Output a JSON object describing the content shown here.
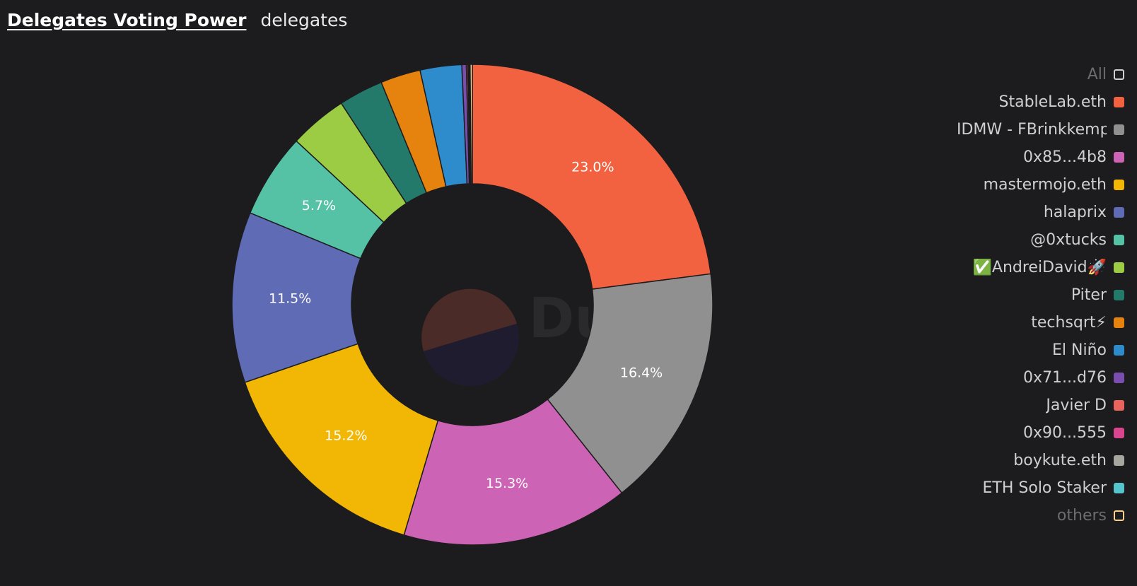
{
  "header": {
    "title": "Delegates Voting Power",
    "subtitle": "delegates"
  },
  "watermark": "Dune",
  "chart_data": {
    "type": "pie",
    "donut": true,
    "title": "Delegates Voting Power",
    "legend_position": "right",
    "legend_all_label": "All",
    "slices": [
      {
        "name": "StableLab.eth",
        "value": 23.0,
        "label": "23.0%",
        "color": "#f26240"
      },
      {
        "name": "IDMW - FBrinkkemper",
        "value": 16.4,
        "label": "16.4%",
        "color": "#909090"
      },
      {
        "name": "0x85...4b8",
        "value": 15.3,
        "label": "15.3%",
        "color": "#cc63b5"
      },
      {
        "name": "mastermojo.eth",
        "value": 15.2,
        "label": "15.2%",
        "color": "#f2b705"
      },
      {
        "name": "halaprix",
        "value": 11.5,
        "label": "11.5%",
        "color": "#5f6bb5"
      },
      {
        "name": "@0xtucks",
        "value": 5.7,
        "label": "5.7%",
        "color": "#55c2a5"
      },
      {
        "name": "✅AndreiDavid🚀",
        "value": 3.9,
        "label": "",
        "color": "#9ccc44"
      },
      {
        "name": "Piter",
        "value": 3.0,
        "label": "",
        "color": "#237a6a"
      },
      {
        "name": "techsqrt⚡",
        "value": 2.7,
        "label": "",
        "color": "#e6820e"
      },
      {
        "name": "El Niño",
        "value": 2.8,
        "label": "",
        "color": "#2e8ccc"
      },
      {
        "name": "0x71...d76",
        "value": 0.3,
        "label": "",
        "color": "#7a4eae"
      },
      {
        "name": "Javier D",
        "value": 0.1,
        "label": "",
        "color": "#e8645c"
      },
      {
        "name": "0x90...555",
        "value": 0.05,
        "label": "",
        "color": "#d9458f"
      },
      {
        "name": "boykute.eth",
        "value": 0.05,
        "label": "",
        "color": "#a7a79f"
      },
      {
        "name": "ETH Solo Staker",
        "value": 0.05,
        "label": "",
        "color": "#56c4cc"
      },
      {
        "name": "others",
        "value": 0.15,
        "label": "",
        "color": "#fcd08c"
      }
    ]
  }
}
